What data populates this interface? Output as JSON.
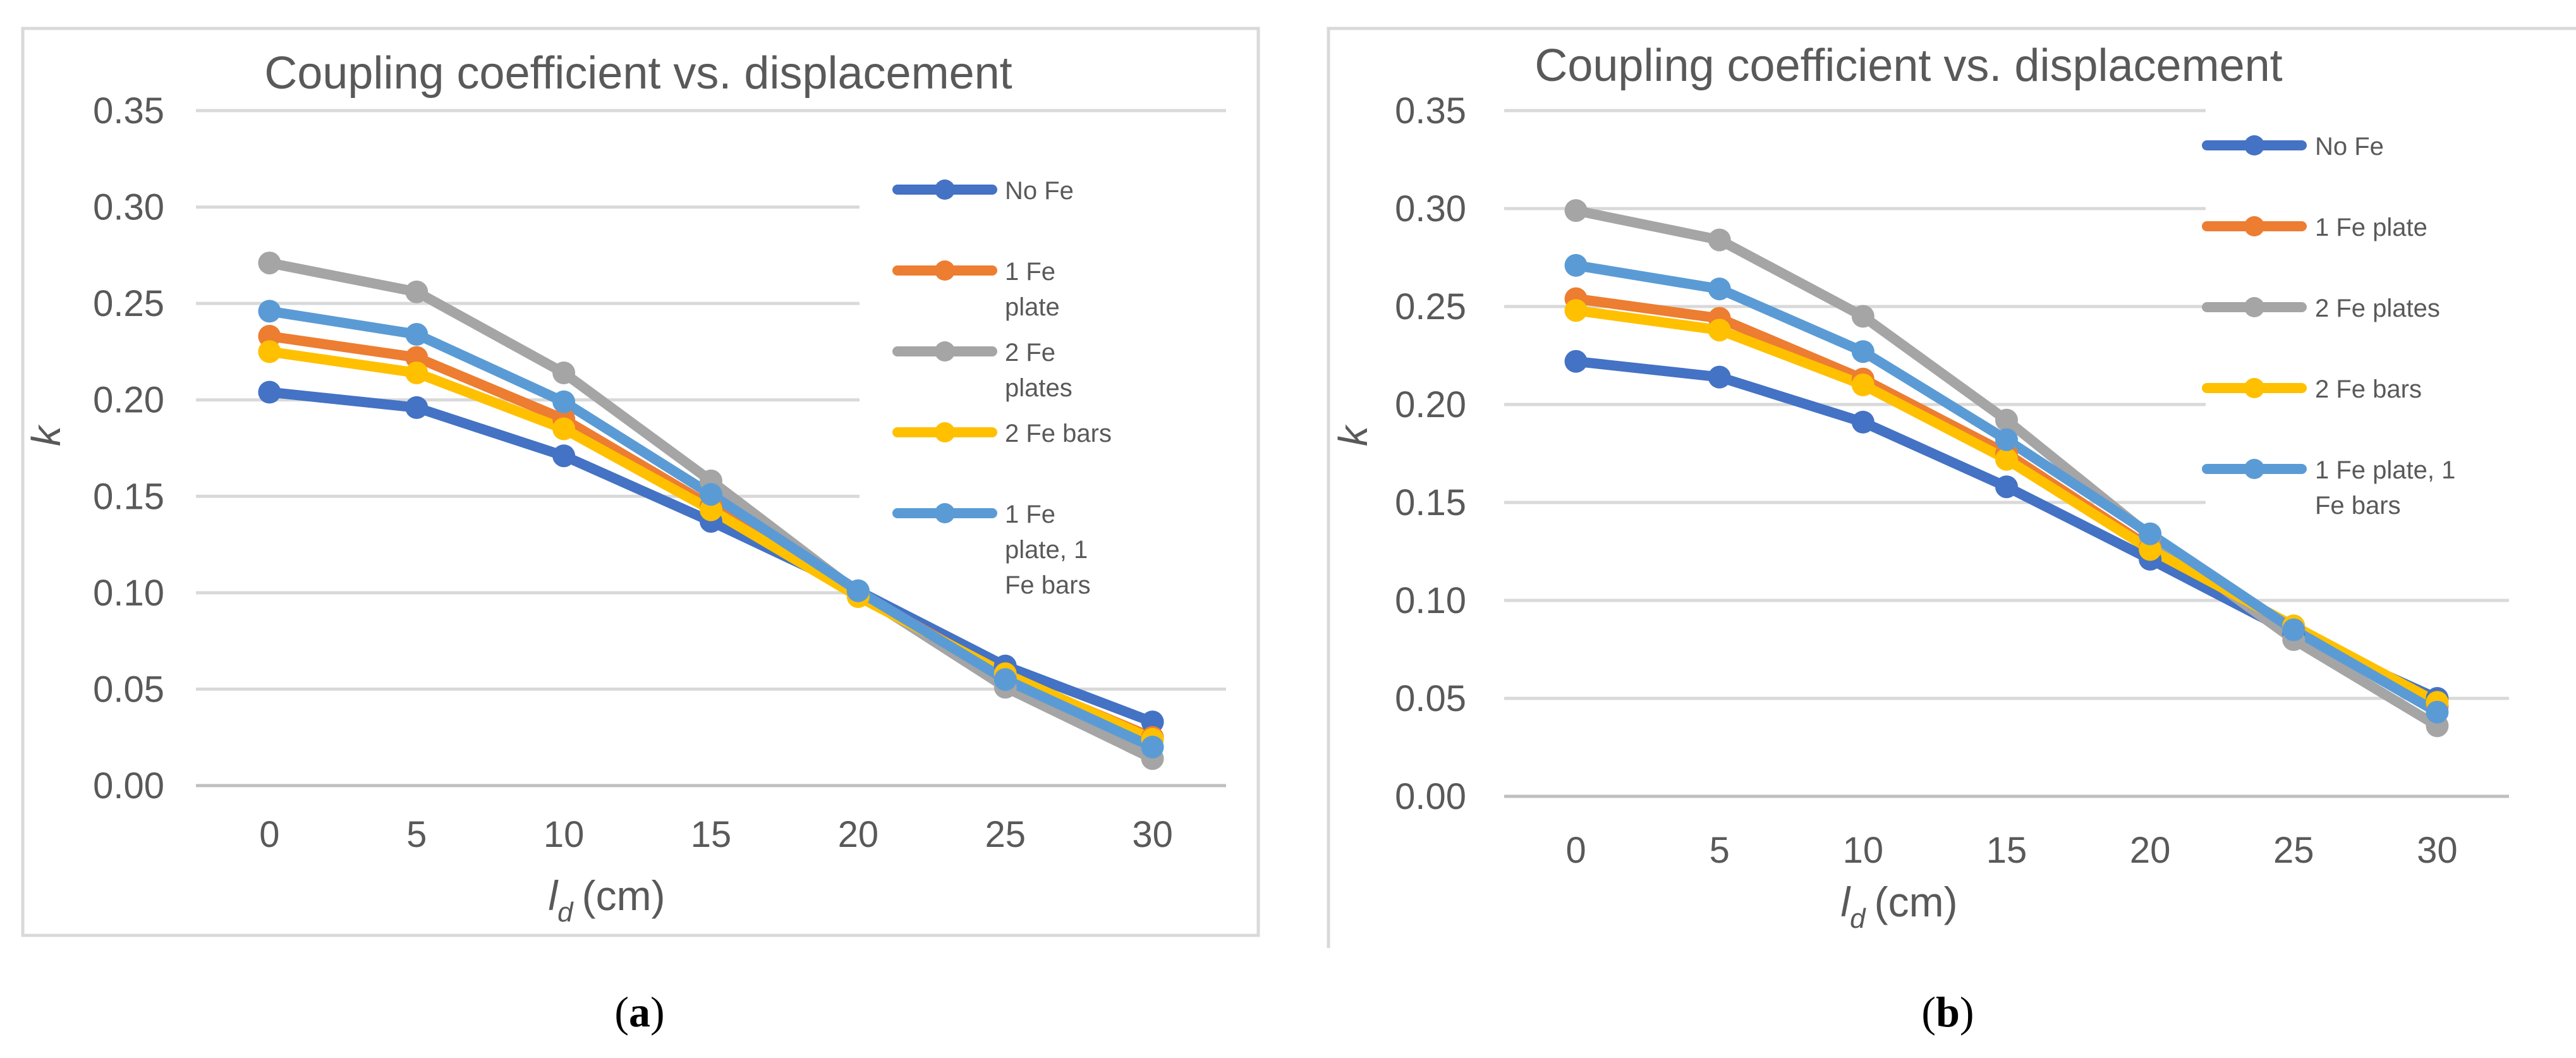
{
  "panels": [
    {
      "caption_letter": "a",
      "chart_data": {
        "type": "line",
        "title": "Coupling coefficient vs. displacement",
        "xlabel": "l",
        "xlabel_sub": "d",
        "xlabel_unit": "(cm)",
        "ylabel": "k",
        "x": [
          0,
          5,
          10,
          15,
          20,
          25,
          30
        ],
        "xticks": [
          "0",
          "5",
          "10",
          "15",
          "20",
          "25",
          "30"
        ],
        "ylim": [
          0,
          0.35
        ],
        "yticks": [
          "0.00",
          "0.05",
          "0.10",
          "0.15",
          "0.20",
          "0.25",
          "0.30",
          "0.35"
        ],
        "grid": true,
        "legend_placement": "right",
        "series": [
          {
            "name": "No Fe",
            "color": "#4472C4",
            "values": [
              0.204,
              0.196,
              0.171,
              0.137,
              0.101,
              0.062,
              0.033
            ]
          },
          {
            "name": "1 Fe plate",
            "color": "#ED7D31",
            "values": [
              0.233,
              0.222,
              0.19,
              0.145,
              0.1,
              0.057,
              0.025
            ]
          },
          {
            "name": "2 Fe plates",
            "color": "#A5A5A5",
            "values": [
              0.271,
              0.256,
              0.214,
              0.158,
              0.1,
              0.051,
              0.014
            ]
          },
          {
            "name": "2 Fe bars",
            "color": "#FFC000",
            "values": [
              0.225,
              0.214,
              0.185,
              0.143,
              0.098,
              0.058,
              0.024
            ]
          },
          {
            "name": "1 Fe plate, 1 Fe bars",
            "color": "#5B9BD5",
            "values": [
              0.246,
              0.234,
              0.199,
              0.151,
              0.101,
              0.055,
              0.02
            ]
          }
        ]
      }
    },
    {
      "caption_letter": "b",
      "chart_data": {
        "type": "line",
        "title": "Coupling coefficient vs. displacement",
        "xlabel": "l",
        "xlabel_sub": "d",
        "xlabel_unit": "(cm)",
        "ylabel": "k",
        "x": [
          0,
          5,
          10,
          15,
          20,
          25,
          30
        ],
        "xticks": [
          "0",
          "5",
          "10",
          "15",
          "20",
          "25",
          "30"
        ],
        "ylim": [
          0,
          0.35
        ],
        "yticks": [
          "0.00",
          "0.05",
          "0.10",
          "0.15",
          "0.20",
          "0.25",
          "0.30",
          "0.35"
        ],
        "grid": true,
        "legend_placement": "right",
        "series": [
          {
            "name": "No Fe",
            "color": "#4472C4",
            "values": [
              0.222,
              0.214,
              0.191,
              0.158,
              0.121,
              0.083,
              0.05
            ]
          },
          {
            "name": "1 Fe plate",
            "color": "#ED7D31",
            "values": [
              0.254,
              0.244,
              0.213,
              0.175,
              0.127,
              0.086,
              0.046
            ]
          },
          {
            "name": "2 Fe plates",
            "color": "#A5A5A5",
            "values": [
              0.299,
              0.284,
              0.245,
              0.192,
              0.133,
              0.08,
              0.036
            ]
          },
          {
            "name": "2 Fe bars",
            "color": "#FFC000",
            "values": [
              0.248,
              0.238,
              0.21,
              0.172,
              0.126,
              0.087,
              0.048
            ]
          },
          {
            "name": "1 Fe plate, 1 Fe bars",
            "color": "#5B9BD5",
            "values": [
              0.271,
              0.259,
              0.227,
              0.182,
              0.134,
              0.085,
              0.043
            ]
          }
        ]
      }
    }
  ]
}
